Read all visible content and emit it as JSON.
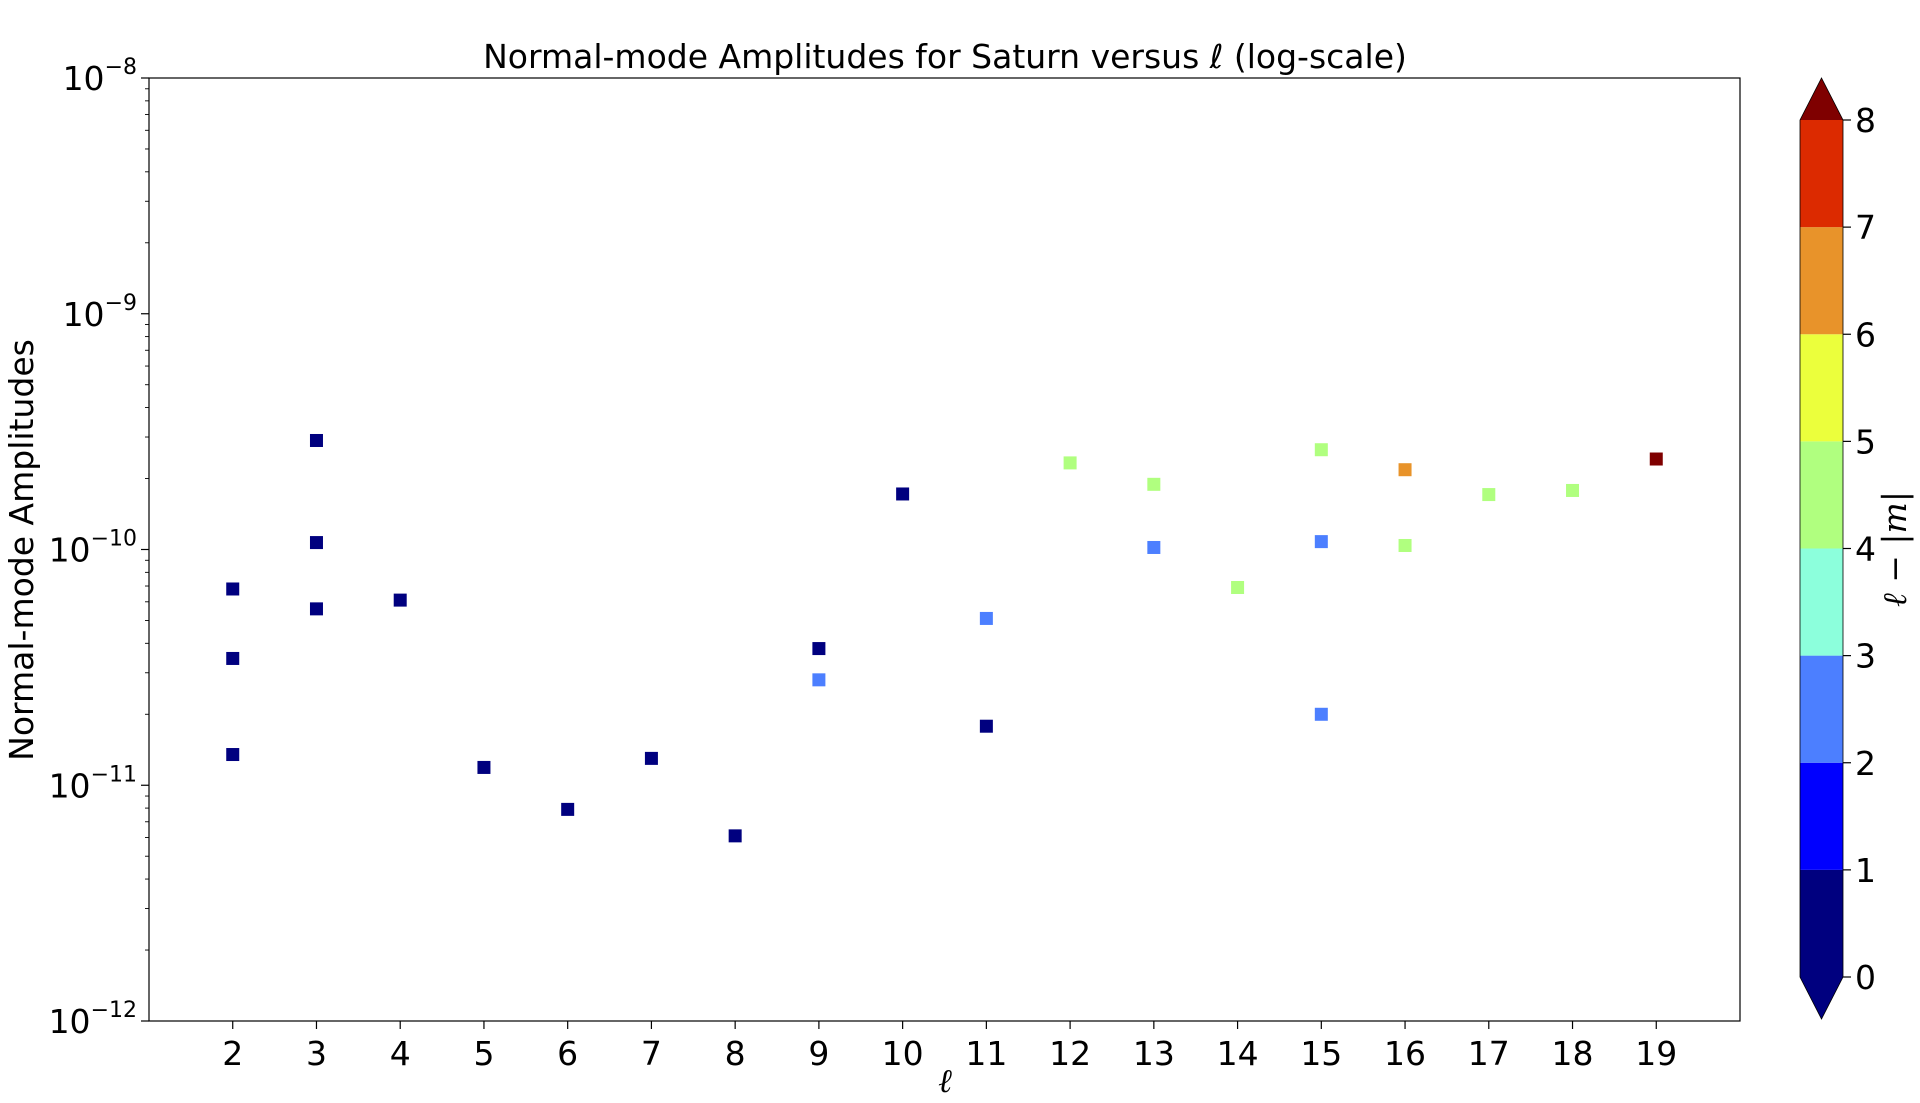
{
  "chart_data": {
    "type": "scatter",
    "title": "Normal-mode Amplitudes for Saturn versus ℓ (log-scale)",
    "xlabel": "ℓ",
    "ylabel": "Normal-mode Amplitudes",
    "x_ticks": [
      2,
      3,
      4,
      5,
      6,
      7,
      8,
      9,
      10,
      11,
      12,
      13,
      14,
      15,
      16,
      17,
      18,
      19
    ],
    "xlim": [
      1,
      20
    ],
    "y_scale": "log",
    "ylim": [
      1e-12,
      1e-08
    ],
    "y_ticks": [
      {
        "value": 1e-12,
        "base": "10",
        "exp": "−12"
      },
      {
        "value": 1e-11,
        "base": "10",
        "exp": "−11"
      },
      {
        "value": 1e-10,
        "base": "10",
        "exp": "−10"
      },
      {
        "value": 1e-09,
        "base": "10",
        "exp": "−9"
      },
      {
        "value": 1e-08,
        "base": "10",
        "exp": "−8"
      }
    ],
    "grid": false,
    "marker": "square",
    "colorbar": {
      "label": "ℓ − |m|",
      "range": [
        0,
        8
      ],
      "ticks": [
        "0",
        "1",
        "2",
        "3",
        "4",
        "5",
        "6",
        "7",
        "8"
      ],
      "extend": "both",
      "levels": [
        {
          "from": 0,
          "to": 1,
          "color": "#00007f"
        },
        {
          "from": 1,
          "to": 2,
          "color": "#0000ff"
        },
        {
          "from": 2,
          "to": 3,
          "color": "#4c7fff"
        },
        {
          "from": 3,
          "to": 4,
          "color": "#8cffdc"
        },
        {
          "from": 4,
          "to": 5,
          "color": "#b0ff7f"
        },
        {
          "from": 5,
          "to": 6,
          "color": "#ebff3c"
        },
        {
          "from": 6,
          "to": 7,
          "color": "#e8932a"
        },
        {
          "from": 7,
          "to": 8,
          "color": "#dc2a00"
        }
      ],
      "under_color": "#00007f",
      "over_color": "#7f0000"
    },
    "points": [
      {
        "x": 2,
        "y": 6.8e-11,
        "c": 0
      },
      {
        "x": 2,
        "y": 3.45e-11,
        "c": 0
      },
      {
        "x": 2,
        "y": 1.35e-11,
        "c": 0
      },
      {
        "x": 3,
        "y": 2.9e-10,
        "c": 0
      },
      {
        "x": 3,
        "y": 1.07e-10,
        "c": 0
      },
      {
        "x": 3,
        "y": 5.6e-11,
        "c": 0
      },
      {
        "x": 4,
        "y": 6.1e-11,
        "c": 0
      },
      {
        "x": 5,
        "y": 1.19e-11,
        "c": 0
      },
      {
        "x": 6,
        "y": 7.9e-12,
        "c": 0
      },
      {
        "x": 7,
        "y": 1.3e-11,
        "c": 0
      },
      {
        "x": 8,
        "y": 6.1e-12,
        "c": 0
      },
      {
        "x": 9,
        "y": 3.8e-11,
        "c": 0
      },
      {
        "x": 9,
        "y": 2.8e-11,
        "c": 2
      },
      {
        "x": 10,
        "y": 1.72e-10,
        "c": 0
      },
      {
        "x": 11,
        "y": 5.1e-11,
        "c": 2
      },
      {
        "x": 11,
        "y": 1.78e-11,
        "c": 0
      },
      {
        "x": 12,
        "y": 2.33e-10,
        "c": 4
      },
      {
        "x": 13,
        "y": 1.89e-10,
        "c": 4
      },
      {
        "x": 13,
        "y": 1.02e-10,
        "c": 2
      },
      {
        "x": 14,
        "y": 6.9e-11,
        "c": 4
      },
      {
        "x": 15,
        "y": 2.65e-10,
        "c": 4
      },
      {
        "x": 15,
        "y": 1.08e-10,
        "c": 2
      },
      {
        "x": 15,
        "y": 2e-11,
        "c": 2
      },
      {
        "x": 16,
        "y": 2.18e-10,
        "c": 6
      },
      {
        "x": 16,
        "y": 1.04e-10,
        "c": 4
      },
      {
        "x": 17,
        "y": 1.71e-10,
        "c": 4
      },
      {
        "x": 18,
        "y": 1.78e-10,
        "c": 4
      },
      {
        "x": 19,
        "y": 2.42e-10,
        "c": 8
      }
    ]
  }
}
